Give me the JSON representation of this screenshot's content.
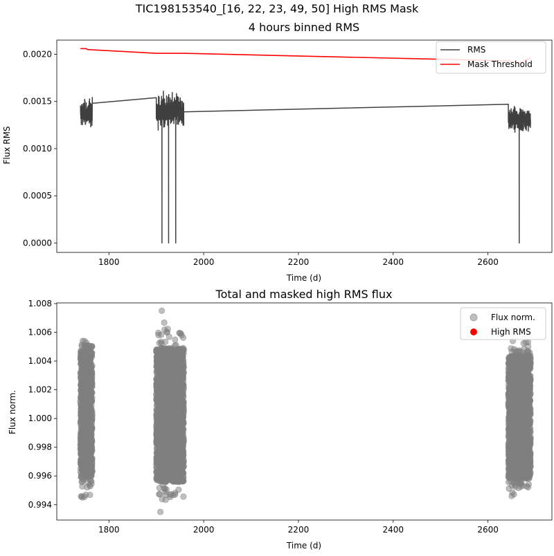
{
  "suptitle": "TIC198153540_[16, 22, 23, 49, 50] High RMS Mask",
  "chart_data": [
    {
      "type": "line",
      "title": "4 hours binned RMS",
      "xlabel": "Time (d)",
      "ylabel": "Flux RMS",
      "xlim": [
        1690,
        2735
      ],
      "ylim": [
        -0.0001,
        0.00215
      ],
      "xticks": [
        1800,
        2000,
        2200,
        2400,
        2600
      ],
      "yticks": [
        0.0,
        0.0005,
        0.001,
        0.0015,
        0.002
      ],
      "ytick_labels": [
        "0.0000",
        "0.0005",
        "0.0010",
        "0.0015",
        "0.0020"
      ],
      "legend_position": "top-right",
      "series": [
        {
          "name": "RMS",
          "color": "#404040",
          "segments": [
            {
              "x_range": [
                1740,
                1765
              ],
              "y_range": [
                0.00116,
                0.00159
              ],
              "dense": true
            },
            {
              "x": [
                1765,
                1900
              ],
              "y": [
                0.00148,
                0.00154
              ]
            },
            {
              "x_range": [
                1900,
                1958
              ],
              "y_range": [
                0.00112,
                0.00167
              ],
              "dense": true
            },
            {
              "x": [
                1958,
                2643
              ],
              "y": [
                0.00139,
                0.00147
              ]
            },
            {
              "x_range": [
                2643,
                2690
              ],
              "y_range": [
                0.00112,
                0.0015
              ],
              "dense": true
            }
          ],
          "dips": [
            {
              "x": 1912,
              "y": 0.0
            },
            {
              "x": 1926,
              "y": 0.0
            },
            {
              "x": 1941,
              "y": 0.0
            },
            {
              "x": 2666,
              "y": 0.0
            }
          ]
        },
        {
          "name": "Mask Threshold",
          "color": "#ff0000",
          "x": [
            1740,
            1752,
            1755,
            1900,
            1958,
            2643,
            2670,
            2680,
            2690
          ],
          "y": [
            0.00206,
            0.00206,
            0.00205,
            0.00201,
            0.00201,
            0.00193,
            0.00191,
            0.00194,
            0.00196
          ]
        }
      ]
    },
    {
      "type": "scatter",
      "title": "Total and masked high RMS flux",
      "xlabel": "Time (d)",
      "ylabel": "Flux norm.",
      "xlim": [
        1690,
        2735
      ],
      "ylim": [
        0.99293,
        1.00805
      ],
      "xticks": [
        1800,
        2000,
        2200,
        2400,
        2600
      ],
      "yticks": [
        0.994,
        0.996,
        0.998,
        1.0,
        1.002,
        1.004,
        1.006,
        1.008
      ],
      "ytick_labels": [
        "0.994",
        "0.996",
        "0.998",
        "1.000",
        "1.002",
        "1.004",
        "1.006",
        "1.008"
      ],
      "legend_position": "top-right",
      "series": [
        {
          "name": "Flux norm.",
          "color": "#808080",
          "clusters": [
            {
              "x_range": [
                1740,
                1765
              ],
              "y_core": [
                0.9958,
                1.0048
              ],
              "y_extent": [
                0.9945,
                1.0054
              ]
            },
            {
              "x_range": [
                1900,
                1958
              ],
              "y_core": [
                0.9955,
                1.005
              ],
              "y_extent": [
                0.9935,
                1.0075
              ]
            },
            {
              "x_range": [
                2643,
                2690
              ],
              "y_core": [
                0.9957,
                1.0045
              ],
              "y_extent": [
                0.9946,
                1.0054
              ]
            }
          ]
        },
        {
          "name": "High RMS",
          "color": "#ff0000",
          "points": []
        }
      ]
    }
  ]
}
